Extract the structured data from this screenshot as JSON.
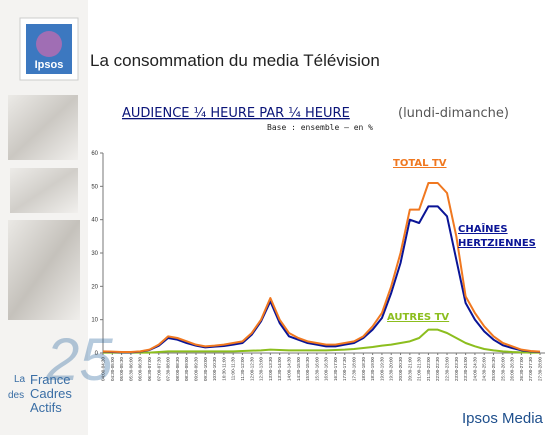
{
  "header": {
    "logo": "Ipsos",
    "title": "La consommation du media Télévision"
  },
  "chart_data": {
    "type": "line",
    "title": "AUDIENCE ¼ HEURE PAR ¼ HEURE",
    "title_note": "(lundi-dimanche)",
    "subtitle": "Base : ensemble – en %",
    "categories": [
      "04:00-04:30",
      "04:30-05:00",
      "05:00-05:30",
      "05:30-06:00",
      "06:00-06:30",
      "06:30-07:00",
      "07:00-07:30",
      "07:30-08:00",
      "08:00-08:30",
      "08:30-09:00",
      "09:00-09:30",
      "09:30-10:00",
      "10:00-10:30",
      "10:30-11:00",
      "11:00-11:30",
      "11:30-12:00",
      "12:00-12:30",
      "12:30-13:00",
      "13:00-13:30",
      "13:30-14:00",
      "14:00-14:30",
      "14:30-15:00",
      "15:00-15:30",
      "15:30-16:00",
      "16:00-16:30",
      "16:30-17:00",
      "17:00-17:30",
      "17:30-18:00",
      "18:00-18:30",
      "18:30-19:00",
      "19:00-19:30",
      "19:30-20:00",
      "20:00-20:30",
      "20:30-21:00",
      "21:00-21:30",
      "21:30-22:00",
      "22:00-22:30",
      "22:30-23:00",
      "23:00-23:30",
      "23:30-24:00",
      "24:00-24:30",
      "24:30-25:00",
      "25:00-25:30",
      "25:30-26:00",
      "26:00-26:30",
      "26:30-27:00",
      "27:00-27:30",
      "27:30-28:00"
    ],
    "series": [
      {
        "name": "TOTAL TV",
        "color": "#f07820",
        "values": [
          0.5,
          0.4,
          0.3,
          0.3,
          0.5,
          1,
          2.5,
          5,
          4.5,
          3.5,
          2.5,
          2,
          2.2,
          2.5,
          3,
          3.5,
          6,
          10,
          16.5,
          10,
          6,
          4.5,
          3.5,
          3,
          2.5,
          2.5,
          3,
          3.5,
          5,
          8,
          12,
          20,
          30,
          43,
          43,
          51,
          51,
          48,
          35,
          17,
          12,
          8,
          5,
          3,
          2,
          1,
          0.6,
          0.4
        ]
      },
      {
        "name": "CHAÎNES HERTZIENNES",
        "color": "#0a1496",
        "values": [
          0.4,
          0.3,
          0.2,
          0.2,
          0.4,
          0.9,
          2.2,
          4.5,
          4,
          3,
          2.2,
          1.7,
          1.9,
          2.1,
          2.5,
          3,
          5.5,
          9.5,
          15.5,
          9,
          5,
          4,
          3,
          2.5,
          2,
          2,
          2.5,
          3,
          4.5,
          7,
          10.5,
          18,
          27,
          40,
          39,
          44,
          44,
          41,
          28,
          15,
          10,
          6.5,
          4,
          2.3,
          1.5,
          0.8,
          0.5,
          0.3
        ]
      },
      {
        "name": "AUTRES TV",
        "color": "#8cbe1e",
        "values": [
          0.1,
          0.1,
          0.1,
          0.1,
          0.1,
          0.1,
          0.3,
          0.5,
          0.5,
          0.5,
          0.5,
          0.5,
          0.5,
          0.5,
          0.5,
          0.6,
          0.7,
          0.8,
          1,
          0.9,
          0.8,
          0.8,
          0.8,
          0.8,
          0.8,
          0.9,
          1,
          1.2,
          1.5,
          1.8,
          2.2,
          2.5,
          3,
          3.5,
          4.5,
          7,
          7,
          6,
          4.5,
          3,
          2,
          1.2,
          0.8,
          0.5,
          0.3,
          0.2,
          0.1,
          0.1
        ]
      }
    ],
    "ylim": [
      0,
      60
    ],
    "yticks": [
      0,
      10,
      20,
      30,
      40,
      50,
      60
    ]
  },
  "footer": {
    "badge_number": "25",
    "badge_text": [
      "La",
      "France",
      "des",
      "Cadres",
      "Actifs"
    ],
    "brand": "Ipsos Media"
  }
}
